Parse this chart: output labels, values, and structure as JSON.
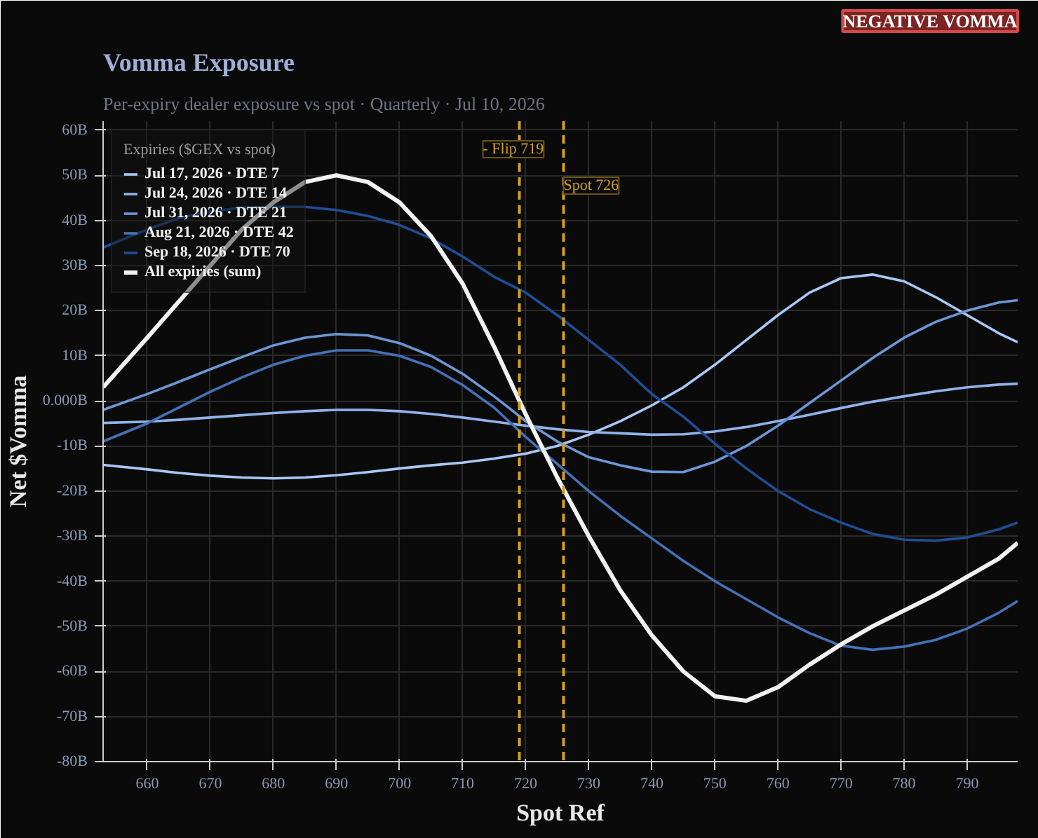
{
  "chart_data": {
    "type": "line",
    "title": "Vomma Exposure",
    "subtitle": "Per-expiry dealer exposure vs spot · Quarterly · Jul 10, 2026",
    "xlabel": "Spot Ref",
    "ylabel": "Net $Vomma",
    "legend_title": "Expiries ($GEX vs spot)",
    "annotations": [
      "NEGATIVE VOMMA"
    ],
    "x": [
      653,
      660,
      665,
      670,
      675,
      680,
      685,
      690,
      695,
      700,
      705,
      710,
      715,
      720,
      725,
      730,
      735,
      740,
      745,
      750,
      755,
      760,
      765,
      770,
      775,
      780,
      785,
      790,
      795,
      798
    ],
    "series": [
      {
        "name": "Jul 17, 2026 · DTE 7",
        "color": "#a9c8f5",
        "values": [
          -14.2,
          -15.2,
          -16,
          -16.6,
          -17,
          -17.2,
          -17,
          -16.5,
          -15.8,
          -15,
          -14.3,
          -13.7,
          -12.8,
          -11.7,
          -10,
          -7.5,
          -4.5,
          -1,
          3,
          8,
          13.5,
          19,
          24,
          27.2,
          28,
          26.5,
          23,
          19,
          15,
          13
        ]
      },
      {
        "name": "Jul 24, 2026 · DTE 14",
        "color": "#8fb3ea",
        "values": [
          -4.9,
          -4.6,
          -4.2,
          -3.7,
          -3.2,
          -2.7,
          -2.3,
          -2,
          -2,
          -2.3,
          -2.9,
          -3.7,
          -4.6,
          -5.5,
          -6.3,
          -6.9,
          -7.2,
          -7.5,
          -7.4,
          -6.8,
          -5.8,
          -4.5,
          -3.1,
          -1.6,
          -0.2,
          1,
          2.1,
          3,
          3.6,
          3.8
        ]
      },
      {
        "name": "Jul 31, 2026 · DTE 21",
        "color": "#6b97d6",
        "values": [
          -2,
          1.5,
          4.2,
          7,
          9.7,
          12.3,
          14,
          14.8,
          14.5,
          12.8,
          10,
          6,
          1,
          -4.5,
          -9,
          -12.5,
          -14.3,
          -15.7,
          -15.8,
          -13.5,
          -10,
          -5.5,
          -0.5,
          4.5,
          9.5,
          14,
          17.5,
          20,
          21.8,
          22.3
        ]
      },
      {
        "name": "Aug 21, 2026 · DTE 42",
        "color": "#4472b8",
        "values": [
          -9,
          -5,
          -1.5,
          2,
          5.2,
          8,
          10,
          11.2,
          11.2,
          10,
          7.5,
          3.5,
          -1.5,
          -8,
          -14,
          -20,
          -25.5,
          -30.5,
          -35.5,
          -40,
          -44,
          -48,
          -51.5,
          -54.3,
          -55.2,
          -54.5,
          -53,
          -50.5,
          -47,
          -44.4
        ]
      },
      {
        "name": "Sep 18, 2026 · DTE 70",
        "color": "#1f4e96",
        "values": [
          34,
          38,
          40.5,
          42,
          42.8,
          43,
          43,
          42.3,
          41,
          39,
          36,
          32,
          27.5,
          24,
          19,
          13.5,
          8,
          1.5,
          -3.5,
          -9.5,
          -15,
          -20,
          -24,
          -27,
          -29.5,
          -30.8,
          -31,
          -30.3,
          -28.5,
          -27
        ]
      },
      {
        "name": "All expiries (sum)",
        "color": "#f2f2f2",
        "values": [
          3,
          14,
          22,
          30,
          38,
          44,
          48.5,
          50,
          48.5,
          44,
          36.5,
          26,
          12,
          -3,
          -17,
          -30,
          -42,
          -52,
          -60,
          -65.5,
          -66.5,
          -63.5,
          -58.5,
          -54,
          -50,
          -46.5,
          -43,
          -39,
          -35,
          -31.5
        ]
      }
    ],
    "xlim": [
      653,
      798
    ],
    "ylim": [
      -80,
      62
    ],
    "xticks": [
      660,
      670,
      680,
      690,
      700,
      710,
      720,
      730,
      740,
      750,
      760,
      770,
      780,
      790
    ],
    "yticks": [
      {
        "value": -80,
        "label": "-80B"
      },
      {
        "value": -70,
        "label": "-70B"
      },
      {
        "value": -60,
        "label": "-60B"
      },
      {
        "value": -50,
        "label": "-50B"
      },
      {
        "value": -40,
        "label": "-40B"
      },
      {
        "value": -30,
        "label": "-30B"
      },
      {
        "value": -20,
        "label": "-20B"
      },
      {
        "value": -10,
        "label": "-10B"
      },
      {
        "value": 0,
        "label": "0.000B"
      },
      {
        "value": 10,
        "label": "10B"
      },
      {
        "value": 20,
        "label": "20B"
      },
      {
        "value": 30,
        "label": "30B"
      },
      {
        "value": 40,
        "label": "40B"
      },
      {
        "value": 50,
        "label": "50B"
      },
      {
        "value": 60,
        "label": "60B"
      }
    ],
    "ref_lines": [
      {
        "axis": "x",
        "value": 719,
        "label": "- Flip 719",
        "color": "#d4a020",
        "line_style": "dashed"
      },
      {
        "axis": "x",
        "value": 726,
        "label": "Spot 726",
        "color": "#d4a020",
        "line_style": "dashed"
      }
    ],
    "grid": true,
    "legend": "top left",
    "marker": "none",
    "line_style": "solid"
  }
}
